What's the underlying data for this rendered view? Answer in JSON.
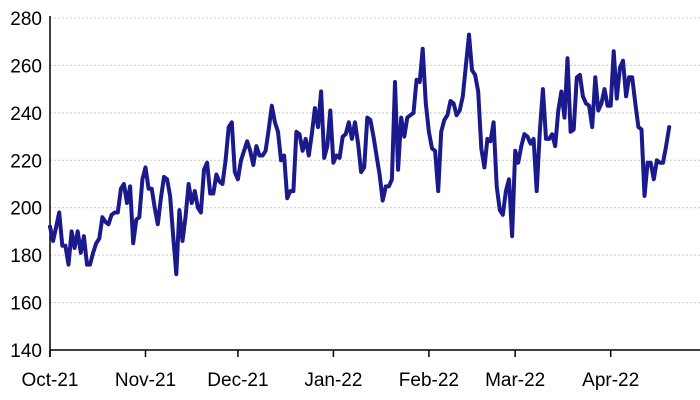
{
  "chart_data": {
    "type": "line",
    "title": "",
    "xlabel": "",
    "ylabel": "",
    "ylim": [
      140,
      280
    ],
    "yticks": [
      140,
      160,
      180,
      200,
      220,
      240,
      260,
      280
    ],
    "grid": "horizontal dashed",
    "legend": "none",
    "x_start": "2021-10-01",
    "x_end": "2022-04-30",
    "xticks": [
      {
        "label": "Oct-21",
        "date": "2021-10-01"
      },
      {
        "label": "Nov-21",
        "date": "2021-11-01"
      },
      {
        "label": "Dec-21",
        "date": "2021-12-01"
      },
      {
        "label": "Jan-22",
        "date": "2022-01-01"
      },
      {
        "label": "Feb-22",
        "date": "2022-02-01"
      },
      {
        "label": "Mar-22",
        "date": "2022-03-01"
      },
      {
        "label": "Apr-22",
        "date": "2022-04-01"
      }
    ],
    "series": [
      {
        "color": "#1a1a8c",
        "points": [
          [
            "2021-10-01",
            192
          ],
          [
            "2021-10-02",
            186
          ],
          [
            "2021-10-03",
            192
          ],
          [
            "2021-10-04",
            198
          ],
          [
            "2021-10-05",
            184
          ],
          [
            "2021-10-06",
            184
          ],
          [
            "2021-10-07",
            176
          ],
          [
            "2021-10-08",
            190
          ],
          [
            "2021-10-09",
            183
          ],
          [
            "2021-10-10",
            190
          ],
          [
            "2021-10-11",
            181
          ],
          [
            "2021-10-12",
            188
          ],
          [
            "2021-10-13",
            176
          ],
          [
            "2021-10-14",
            176
          ],
          [
            "2021-10-15",
            181
          ],
          [
            "2021-10-16",
            185
          ],
          [
            "2021-10-17",
            187
          ],
          [
            "2021-10-18",
            196
          ],
          [
            "2021-10-19",
            194
          ],
          [
            "2021-10-20",
            193
          ],
          [
            "2021-10-21",
            197
          ],
          [
            "2021-10-22",
            198
          ],
          [
            "2021-10-23",
            198
          ],
          [
            "2021-10-24",
            208
          ],
          [
            "2021-10-25",
            210
          ],
          [
            "2021-10-26",
            202
          ],
          [
            "2021-10-27",
            209
          ],
          [
            "2021-10-28",
            185
          ],
          [
            "2021-10-29",
            195
          ],
          [
            "2021-10-30",
            196
          ],
          [
            "2021-10-31",
            212
          ],
          [
            "2021-11-01",
            217
          ],
          [
            "2021-11-02",
            208
          ],
          [
            "2021-11-03",
            208
          ],
          [
            "2021-11-04",
            200
          ],
          [
            "2021-11-05",
            193
          ],
          [
            "2021-11-06",
            204
          ],
          [
            "2021-11-07",
            213
          ],
          [
            "2021-11-08",
            212
          ],
          [
            "2021-11-09",
            205
          ],
          [
            "2021-11-10",
            188
          ],
          [
            "2021-11-11",
            172
          ],
          [
            "2021-11-12",
            199
          ],
          [
            "2021-11-13",
            186
          ],
          [
            "2021-11-14",
            196
          ],
          [
            "2021-11-15",
            210
          ],
          [
            "2021-11-16",
            202
          ],
          [
            "2021-11-17",
            207
          ],
          [
            "2021-11-18",
            200
          ],
          [
            "2021-11-19",
            198
          ],
          [
            "2021-11-20",
            216
          ],
          [
            "2021-11-21",
            219
          ],
          [
            "2021-11-22",
            206
          ],
          [
            "2021-11-23",
            206
          ],
          [
            "2021-11-24",
            214
          ],
          [
            "2021-11-25",
            211
          ],
          [
            "2021-11-26",
            210
          ],
          [
            "2021-11-27",
            220
          ],
          [
            "2021-11-28",
            234
          ],
          [
            "2021-11-29",
            236
          ],
          [
            "2021-11-30",
            215
          ],
          [
            "2021-12-01",
            212
          ],
          [
            "2021-12-02",
            220
          ],
          [
            "2021-12-03",
            224
          ],
          [
            "2021-12-04",
            228
          ],
          [
            "2021-12-05",
            224
          ],
          [
            "2021-12-06",
            218
          ],
          [
            "2021-12-07",
            226
          ],
          [
            "2021-12-08",
            222
          ],
          [
            "2021-12-09",
            222
          ],
          [
            "2021-12-10",
            224
          ],
          [
            "2021-12-11",
            233
          ],
          [
            "2021-12-12",
            243
          ],
          [
            "2021-12-13",
            236
          ],
          [
            "2021-12-14",
            232
          ],
          [
            "2021-12-15",
            220
          ],
          [
            "2021-12-16",
            222
          ],
          [
            "2021-12-17",
            204
          ],
          [
            "2021-12-18",
            207
          ],
          [
            "2021-12-19",
            207
          ],
          [
            "2021-12-20",
            232
          ],
          [
            "2021-12-21",
            231
          ],
          [
            "2021-12-22",
            224
          ],
          [
            "2021-12-23",
            229
          ],
          [
            "2021-12-24",
            222
          ],
          [
            "2021-12-25",
            231
          ],
          [
            "2021-12-26",
            242
          ],
          [
            "2021-12-27",
            234
          ],
          [
            "2021-12-28",
            249
          ],
          [
            "2021-12-29",
            221
          ],
          [
            "2021-12-30",
            226
          ],
          [
            "2021-12-31",
            241
          ],
          [
            "2022-01-01",
            219
          ],
          [
            "2022-01-02",
            222
          ],
          [
            "2022-01-03",
            221
          ],
          [
            "2022-01-04",
            230
          ],
          [
            "2022-01-05",
            231
          ],
          [
            "2022-01-06",
            236
          ],
          [
            "2022-01-07",
            229
          ],
          [
            "2022-01-08",
            236
          ],
          [
            "2022-01-09",
            227
          ],
          [
            "2022-01-10",
            215
          ],
          [
            "2022-01-11",
            217
          ],
          [
            "2022-01-12",
            238
          ],
          [
            "2022-01-13",
            237
          ],
          [
            "2022-01-14",
            230
          ],
          [
            "2022-01-15",
            222
          ],
          [
            "2022-01-16",
            214
          ],
          [
            "2022-01-17",
            203
          ],
          [
            "2022-01-18",
            209
          ],
          [
            "2022-01-19",
            209
          ],
          [
            "2022-01-20",
            212
          ],
          [
            "2022-01-21",
            253
          ],
          [
            "2022-01-22",
            216
          ],
          [
            "2022-01-23",
            238
          ],
          [
            "2022-01-24",
            230
          ],
          [
            "2022-01-25",
            238
          ],
          [
            "2022-01-26",
            239
          ],
          [
            "2022-01-27",
            240
          ],
          [
            "2022-01-28",
            254
          ],
          [
            "2022-01-29",
            253
          ],
          [
            "2022-01-30",
            267
          ],
          [
            "2022-01-31",
            244
          ],
          [
            "2022-02-01",
            232
          ],
          [
            "2022-02-02",
            225
          ],
          [
            "2022-02-03",
            224
          ],
          [
            "2022-02-04",
            207
          ],
          [
            "2022-02-05",
            232
          ],
          [
            "2022-02-06",
            237
          ],
          [
            "2022-02-07",
            239
          ],
          [
            "2022-02-08",
            245
          ],
          [
            "2022-02-09",
            244
          ],
          [
            "2022-02-10",
            239
          ],
          [
            "2022-02-11",
            241
          ],
          [
            "2022-02-12",
            247
          ],
          [
            "2022-02-13",
            260
          ],
          [
            "2022-02-14",
            273
          ],
          [
            "2022-02-15",
            258
          ],
          [
            "2022-02-16",
            256
          ],
          [
            "2022-02-17",
            249
          ],
          [
            "2022-02-18",
            225
          ],
          [
            "2022-02-19",
            217
          ],
          [
            "2022-02-20",
            229
          ],
          [
            "2022-02-21",
            228
          ],
          [
            "2022-02-22",
            236
          ],
          [
            "2022-02-23",
            209
          ],
          [
            "2022-02-24",
            199
          ],
          [
            "2022-02-25",
            197
          ],
          [
            "2022-02-26",
            207
          ],
          [
            "2022-02-27",
            212
          ],
          [
            "2022-02-28",
            188
          ],
          [
            "2022-03-01",
            224
          ],
          [
            "2022-03-02",
            219
          ],
          [
            "2022-03-03",
            226
          ],
          [
            "2022-03-04",
            231
          ],
          [
            "2022-03-05",
            230
          ],
          [
            "2022-03-06",
            227
          ],
          [
            "2022-03-07",
            229
          ],
          [
            "2022-03-08",
            207
          ],
          [
            "2022-03-09",
            232
          ],
          [
            "2022-03-10",
            250
          ],
          [
            "2022-03-11",
            229
          ],
          [
            "2022-03-12",
            229
          ],
          [
            "2022-03-13",
            231
          ],
          [
            "2022-03-14",
            226
          ],
          [
            "2022-03-15",
            241
          ],
          [
            "2022-03-16",
            249
          ],
          [
            "2022-03-17",
            238
          ],
          [
            "2022-03-18",
            263
          ],
          [
            "2022-03-19",
            232
          ],
          [
            "2022-03-20",
            233
          ],
          [
            "2022-03-21",
            255
          ],
          [
            "2022-03-22",
            256
          ],
          [
            "2022-03-23",
            247
          ],
          [
            "2022-03-24",
            244
          ],
          [
            "2022-03-25",
            243
          ],
          [
            "2022-03-26",
            234
          ],
          [
            "2022-03-27",
            255
          ],
          [
            "2022-03-28",
            241
          ],
          [
            "2022-03-29",
            244
          ],
          [
            "2022-03-30",
            250
          ],
          [
            "2022-03-31",
            243
          ],
          [
            "2022-04-01",
            243
          ],
          [
            "2022-04-02",
            266
          ],
          [
            "2022-04-03",
            246
          ],
          [
            "2022-04-04",
            259
          ],
          [
            "2022-04-05",
            262
          ],
          [
            "2022-04-06",
            247
          ],
          [
            "2022-04-07",
            255
          ],
          [
            "2022-04-08",
            255
          ],
          [
            "2022-04-09",
            244
          ],
          [
            "2022-04-10",
            234
          ],
          [
            "2022-04-11",
            233
          ],
          [
            "2022-04-12",
            205
          ],
          [
            "2022-04-13",
            219
          ],
          [
            "2022-04-14",
            219
          ],
          [
            "2022-04-15",
            212
          ],
          [
            "2022-04-16",
            220
          ],
          [
            "2022-04-17",
            219
          ],
          [
            "2022-04-18",
            219
          ],
          [
            "2022-04-19",
            226
          ],
          [
            "2022-04-20",
            234
          ]
        ]
      }
    ]
  }
}
